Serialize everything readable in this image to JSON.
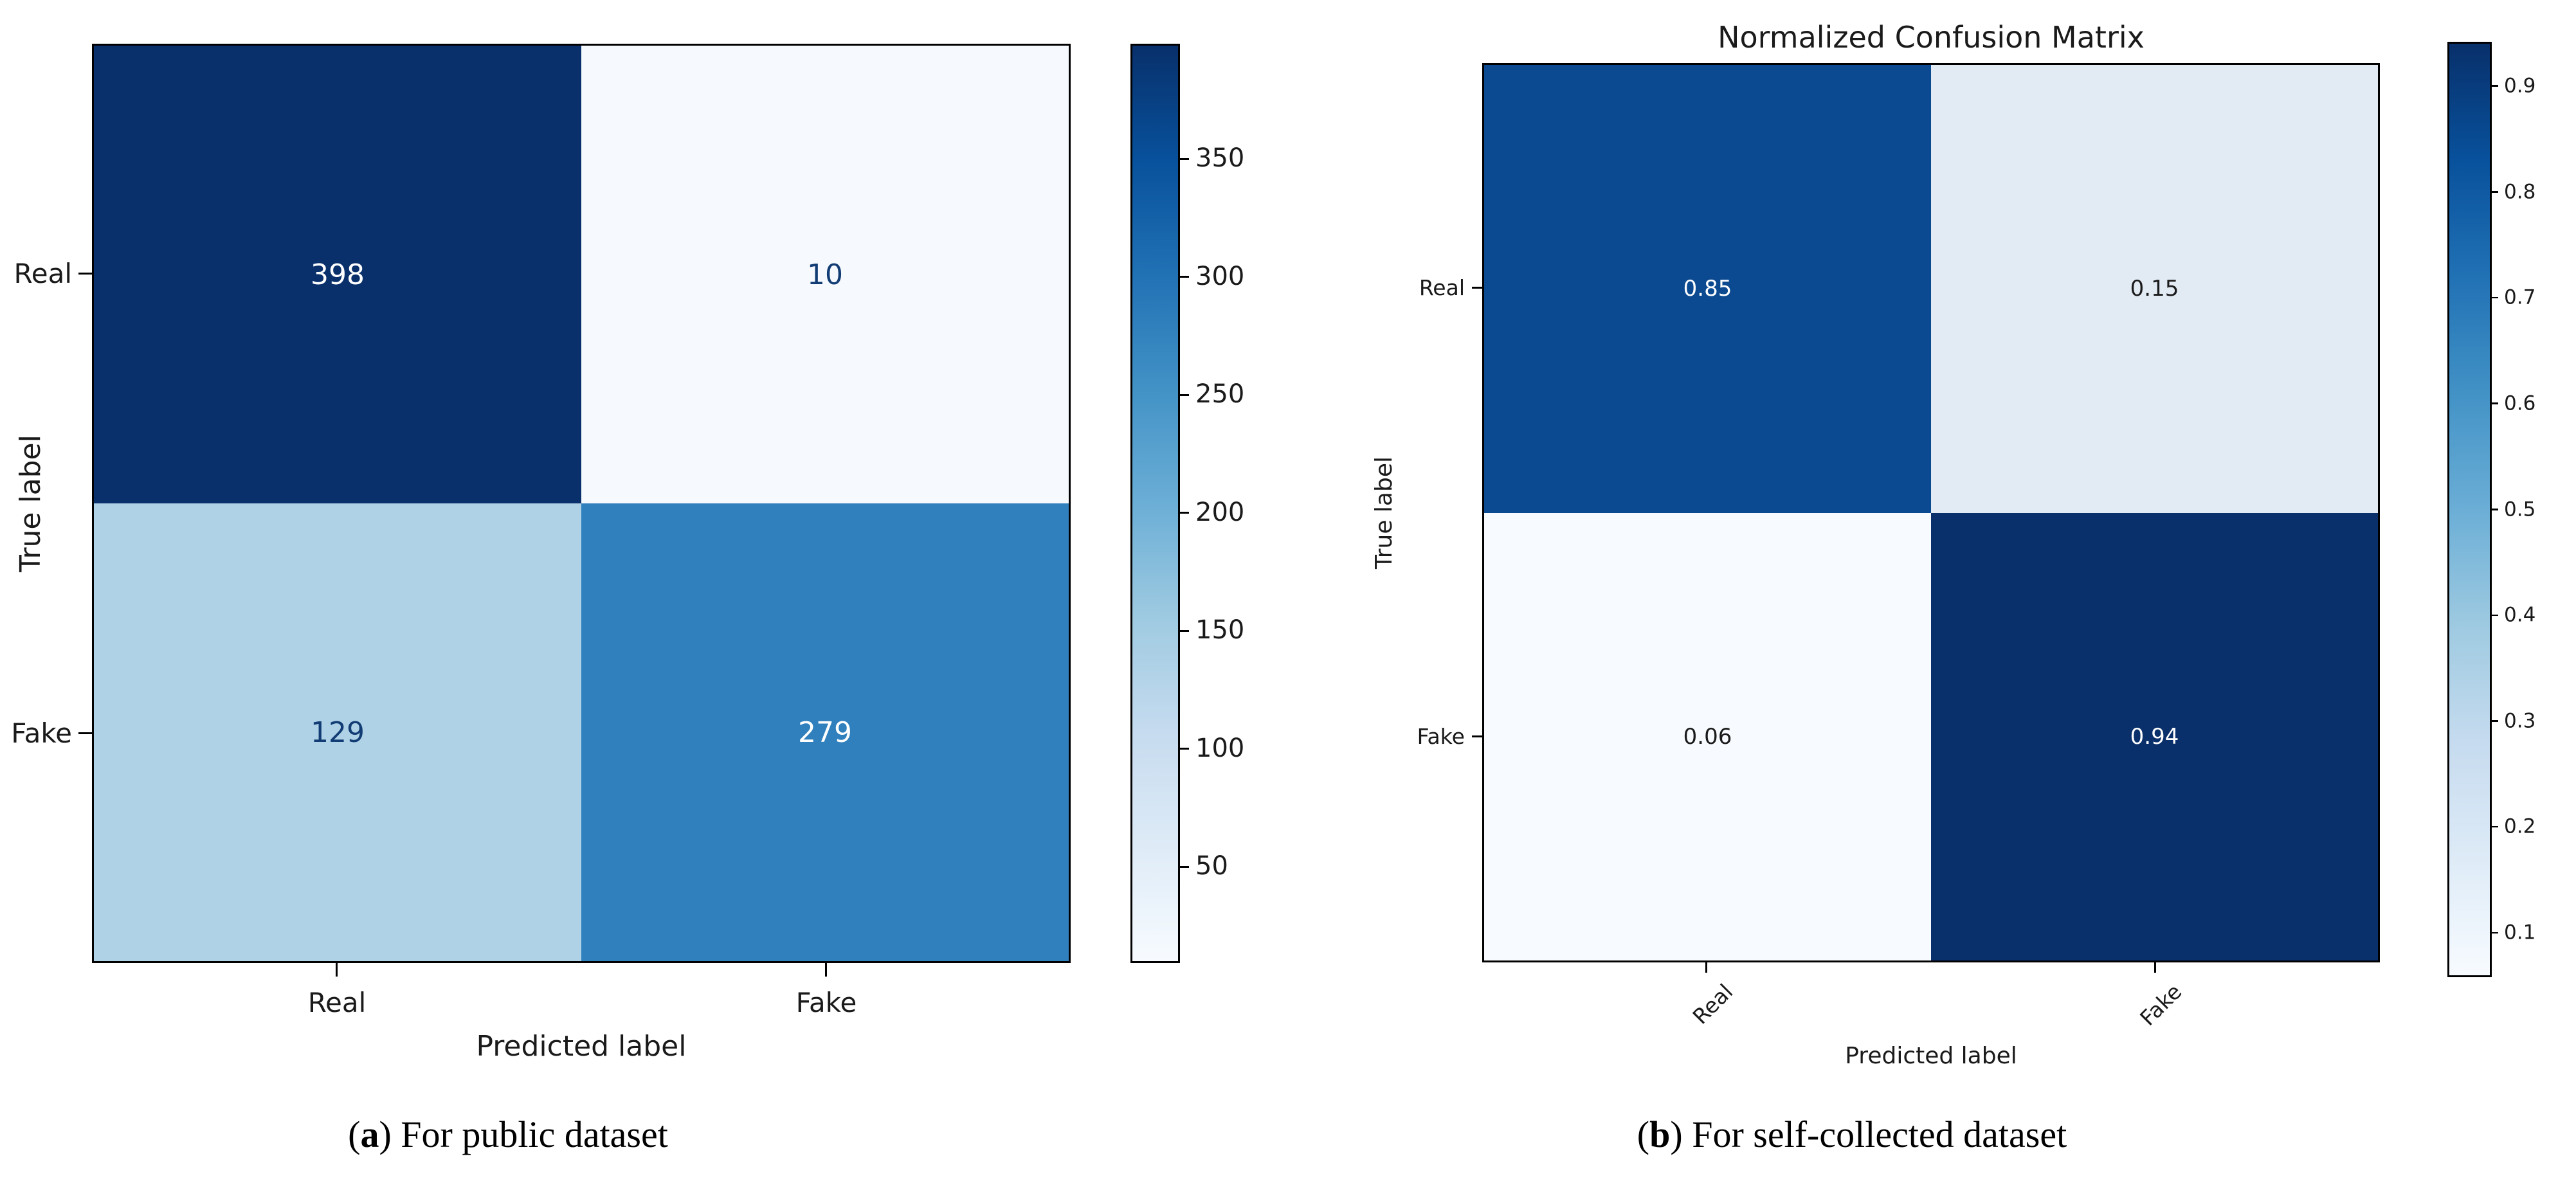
{
  "figure_a": {
    "y_axis": {
      "label": "True label",
      "ticks": [
        "Real",
        "Fake"
      ]
    },
    "x_axis": {
      "label": "Predicted label",
      "ticks": [
        "Real",
        "Fake"
      ]
    },
    "cells": [
      {
        "value": "398",
        "bg": "#0a306c",
        "fg": "#ffffff"
      },
      {
        "value": "10",
        "bg": "#f6fafe",
        "fg": "#123d74"
      },
      {
        "value": "129",
        "bg": "#b0d2e7",
        "fg": "#123d74"
      },
      {
        "value": "279",
        "bg": "#3080bd",
        "fg": "#ffffff"
      }
    ],
    "colorbar": {
      "vmin": 10,
      "vmax": 398,
      "ticks": [
        {
          "v": 350,
          "label": "350"
        },
        {
          "v": 300,
          "label": "300"
        },
        {
          "v": 250,
          "label": "250"
        },
        {
          "v": 200,
          "label": "200"
        },
        {
          "v": 150,
          "label": "150"
        },
        {
          "v": 100,
          "label": "100"
        },
        {
          "v": 50,
          "label": "50"
        }
      ],
      "gradient": [
        "#08306b 0%",
        "#08519c 12.5%",
        "#2171b5 25%",
        "#4292c6 37.5%",
        "#6baed6 50%",
        "#9ecae1 62.5%",
        "#c6dbef 75%",
        "#deebf7 87.5%",
        "#f7fbff 100%"
      ]
    },
    "caption": {
      "open": "(",
      "letter": "a",
      "close": ")",
      "text": " For public dataset"
    }
  },
  "figure_b": {
    "title": "Normalized Confusion Matrix",
    "y_axis": {
      "label": "True label",
      "ticks": [
        "Real",
        "Fake"
      ]
    },
    "x_axis": {
      "label": "Predicted label",
      "ticks": [
        "Real",
        "Fake"
      ]
    },
    "cells": [
      {
        "value": "0.85",
        "bg": "#0b4a90",
        "fg": "#ffffff"
      },
      {
        "value": "0.15",
        "bg": "#e2eaf4",
        "fg": "#1a1a1a"
      },
      {
        "value": "0.06",
        "bg": "#f7fafe",
        "fg": "#1a1a1a"
      },
      {
        "value": "0.94",
        "bg": "#0a306b",
        "fg": "#ffffff"
      }
    ],
    "colorbar": {
      "vmin": 0.06,
      "vmax": 0.94,
      "ticks": [
        {
          "v": 0.9,
          "label": "0.9"
        },
        {
          "v": 0.8,
          "label": "0.8"
        },
        {
          "v": 0.7,
          "label": "0.7"
        },
        {
          "v": 0.6,
          "label": "0.6"
        },
        {
          "v": 0.5,
          "label": "0.5"
        },
        {
          "v": 0.4,
          "label": "0.4"
        },
        {
          "v": 0.3,
          "label": "0.3"
        },
        {
          "v": 0.2,
          "label": "0.2"
        },
        {
          "v": 0.1,
          "label": "0.1"
        }
      ],
      "gradient": [
        "#08306b 0%",
        "#08519c 12.5%",
        "#2171b5 25%",
        "#4292c6 37.5%",
        "#6baed6 50%",
        "#9ecae1 62.5%",
        "#c6dbef 75%",
        "#deebf7 87.5%",
        "#f7fbff 100%"
      ]
    },
    "caption": {
      "open": "(",
      "letter": "b",
      "close": ")",
      "text": " For self-collected dataset"
    }
  },
  "chart_data": [
    {
      "type": "heatmap",
      "title": "",
      "x_categories": [
        "Real",
        "Fake"
      ],
      "y_categories": [
        "Real",
        "Fake"
      ],
      "xlabel": "Predicted label",
      "ylabel": "True label",
      "values": [
        [
          398,
          10
        ],
        [
          129,
          279
        ]
      ],
      "colormap": "Blues",
      "colorbar_range": [
        10,
        398
      ],
      "colorbar_ticks": [
        50,
        100,
        150,
        200,
        250,
        300,
        350
      ],
      "legend_position": "right-colorbar",
      "caption": "(a) For public dataset"
    },
    {
      "type": "heatmap",
      "title": "Normalized Confusion Matrix",
      "x_categories": [
        "Real",
        "Fake"
      ],
      "y_categories": [
        "Real",
        "Fake"
      ],
      "xlabel": "Predicted label",
      "ylabel": "True label",
      "values": [
        [
          0.85,
          0.15
        ],
        [
          0.06,
          0.94
        ]
      ],
      "colormap": "Blues",
      "colorbar_range": [
        0.06,
        0.94
      ],
      "colorbar_ticks": [
        0.1,
        0.2,
        0.3,
        0.4,
        0.5,
        0.6,
        0.7,
        0.8,
        0.9
      ],
      "legend_position": "right-colorbar",
      "caption": "(b) For self-collected dataset"
    }
  ]
}
